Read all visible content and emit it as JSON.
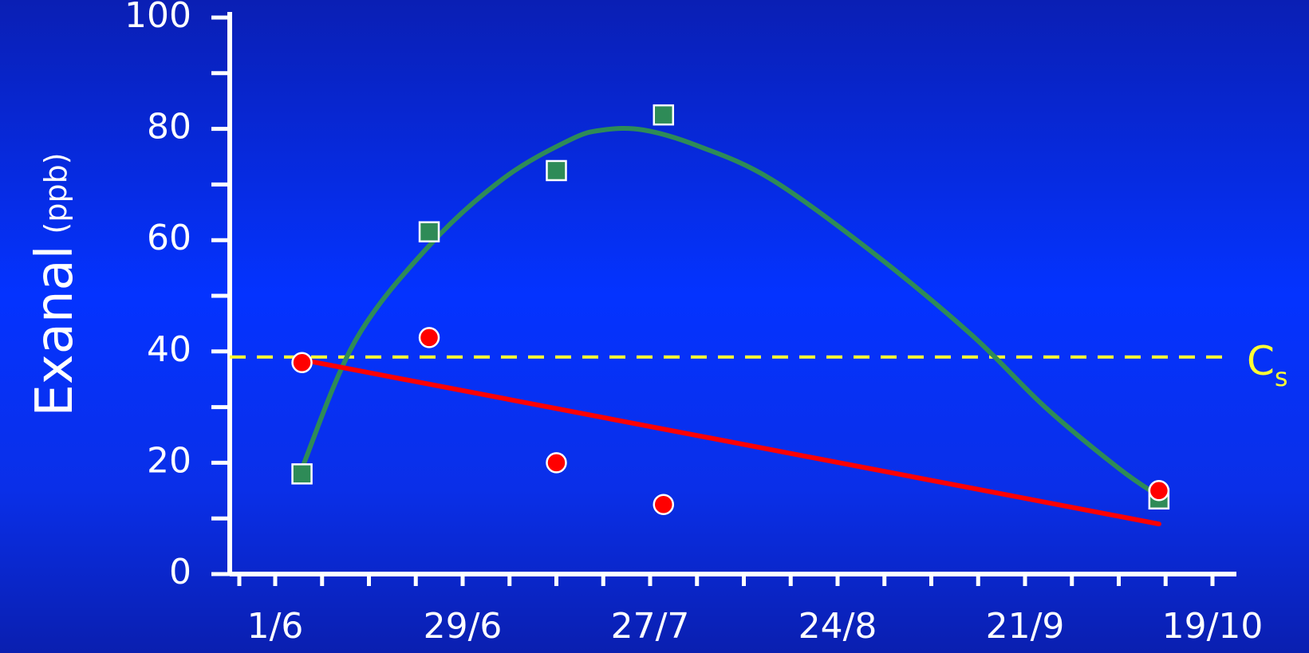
{
  "chart_data": {
    "type": "scatter",
    "ylabel": "Exanal",
    "ylabel_unit": "(ppb)",
    "ylim": [
      0,
      100
    ],
    "yticks": [
      0,
      20,
      40,
      60,
      80,
      100
    ],
    "x_tick_labels": [
      "1/6",
      "29/6",
      "27/7",
      "24/8",
      "21/9",
      "19/10"
    ],
    "xlim": [
      "1/6",
      "19/10"
    ],
    "grid": false,
    "reference_line": {
      "label": "C",
      "subscript": "s",
      "y": 39,
      "color": "#ffff33",
      "style": "dashed"
    },
    "series": [
      {
        "marker": "square",
        "color": "#2e8b57",
        "points": [
          {
            "x": "5/6",
            "y": 18
          },
          {
            "x": "24/6",
            "y": 61.5
          },
          {
            "x": "13/7",
            "y": 72.5
          },
          {
            "x": "29/7",
            "y": 82.5
          },
          {
            "x": "11/10",
            "y": 13.5
          }
        ],
        "fit": {
          "type": "curve",
          "color": "#2e8b57",
          "points": [
            {
              "x": "5/6",
              "y": 19
            },
            {
              "x": "13/6",
              "y": 42
            },
            {
              "x": "24/6",
              "y": 59
            },
            {
              "x": "5/7",
              "y": 71
            },
            {
              "x": "15/7",
              "y": 78
            },
            {
              "x": "20/7",
              "y": 79.8
            },
            {
              "x": "26/7",
              "y": 79.8
            },
            {
              "x": "3/8",
              "y": 77
            },
            {
              "x": "14/8",
              "y": 71
            },
            {
              "x": "29/8",
              "y": 58
            },
            {
              "x": "13/9",
              "y": 43
            },
            {
              "x": "24/9",
              "y": 30
            },
            {
              "x": "5/10",
              "y": 19
            },
            {
              "x": "11/10",
              "y": 14
            }
          ]
        }
      },
      {
        "marker": "circle",
        "color": "#ff0000",
        "points": [
          {
            "x": "5/6",
            "y": 38
          },
          {
            "x": "24/6",
            "y": 42.5
          },
          {
            "x": "13/7",
            "y": 20
          },
          {
            "x": "29/7",
            "y": 12.5
          },
          {
            "x": "11/10",
            "y": 15
          }
        ],
        "fit": {
          "type": "linear",
          "color": "#ff0000",
          "points": [
            {
              "x": "5/6",
              "y": 38.5
            },
            {
              "x": "11/10",
              "y": 9
            }
          ]
        }
      }
    ]
  }
}
